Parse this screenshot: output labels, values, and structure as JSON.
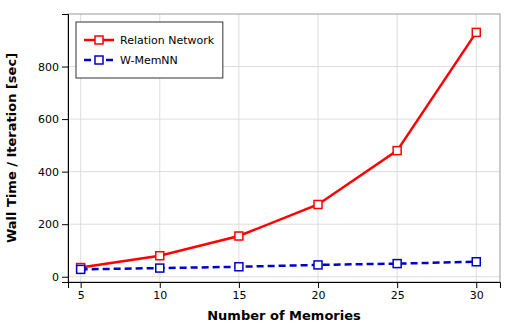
{
  "chart_data": {
    "type": "line",
    "x": [
      5,
      10,
      15,
      20,
      25,
      30
    ],
    "series": [
      {
        "name": "Relation Network",
        "color": "#ff0000",
        "values": [
          35,
          80,
          155,
          275,
          480,
          930
        ],
        "marker": "square",
        "line_style": "solid"
      },
      {
        "name": "W-MemNN",
        "color": "#0000cc",
        "values": [
          28,
          33,
          38,
          45,
          50,
          57
        ],
        "marker": "square",
        "line_style": "dashed"
      }
    ],
    "xlabel": "Number of Memories",
    "ylabel": "Wall Time / Iteration [sec]",
    "xlim": [
      4.2,
      31.5
    ],
    "ylim": [
      -20,
      1000
    ],
    "xticks": [
      5,
      10,
      15,
      20,
      25,
      30
    ],
    "yticks": [
      0,
      200,
      400,
      600,
      800
    ],
    "grid": true,
    "legend": "upper left"
  }
}
